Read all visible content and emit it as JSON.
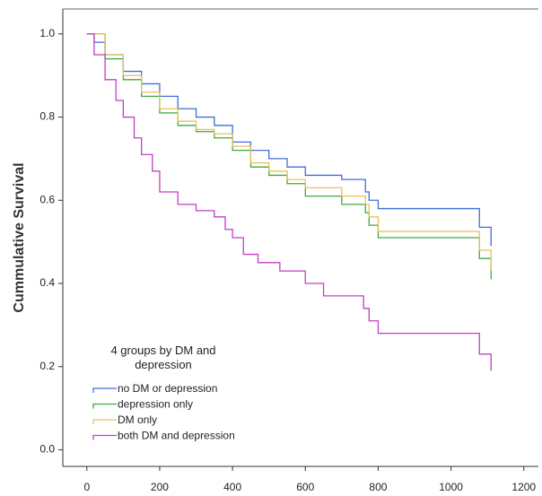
{
  "chart_data": {
    "type": "step",
    "y_label": "Cummulative Survival",
    "legend_title": "4 groups by DM and depression",
    "xlim": [
      -66,
      1240
    ],
    "ylim": [
      -0.04,
      1.06
    ],
    "xticks": [
      0,
      200,
      400,
      600,
      800,
      1000,
      1200
    ],
    "yticks": [
      {
        "value": 0,
        "label": "0.0"
      },
      {
        "value": 0.2,
        "label": "0.2"
      },
      {
        "value": 0.4,
        "label": "0.4"
      },
      {
        "value": 0.6,
        "label": "0.6"
      },
      {
        "value": 0.8,
        "label": "0.8"
      },
      {
        "value": 1,
        "label": "1.0"
      }
    ],
    "series": [
      {
        "name": "no DM or depression",
        "color": "#3f6fd8",
        "x": [
          0,
          20,
          50,
          100,
          150,
          200,
          250,
          300,
          350,
          400,
          450,
          500,
          550,
          600,
          700,
          765,
          775,
          800,
          1078,
          1110
        ],
        "values": [
          1.0,
          0.98,
          0.95,
          0.91,
          0.88,
          0.85,
          0.82,
          0.8,
          0.78,
          0.74,
          0.72,
          0.7,
          0.68,
          0.66,
          0.65,
          0.62,
          0.6,
          0.58,
          0.535,
          0.49
        ]
      },
      {
        "name": "depression only",
        "color": "#3daa3d",
        "x": [
          0,
          50,
          100,
          150,
          200,
          250,
          300,
          350,
          400,
          450,
          500,
          550,
          600,
          700,
          765,
          775,
          800,
          1078,
          1110
        ],
        "values": [
          1.0,
          0.94,
          0.89,
          0.85,
          0.81,
          0.78,
          0.765,
          0.75,
          0.72,
          0.68,
          0.66,
          0.64,
          0.61,
          0.59,
          0.57,
          0.54,
          0.51,
          0.46,
          0.41
        ]
      },
      {
        "name": "DM only",
        "color": "#e8c25a",
        "x": [
          0,
          50,
          100,
          150,
          200,
          250,
          300,
          350,
          400,
          450,
          500,
          550,
          600,
          700,
          765,
          775,
          800,
          1078,
          1110
        ],
        "values": [
          1.0,
          0.95,
          0.9,
          0.86,
          0.82,
          0.79,
          0.77,
          0.76,
          0.73,
          0.69,
          0.67,
          0.65,
          0.63,
          0.61,
          0.59,
          0.56,
          0.525,
          0.48,
          0.43
        ]
      },
      {
        "name": "both DM and depression",
        "color": "#c43fc4",
        "x": [
          0,
          20,
          50,
          80,
          100,
          130,
          150,
          180,
          200,
          250,
          300,
          350,
          380,
          400,
          430,
          470,
          530,
          600,
          650,
          760,
          775,
          800,
          1078,
          1110
        ],
        "values": [
          1.0,
          0.95,
          0.89,
          0.84,
          0.8,
          0.75,
          0.71,
          0.67,
          0.62,
          0.59,
          0.575,
          0.56,
          0.53,
          0.51,
          0.47,
          0.45,
          0.43,
          0.4,
          0.37,
          0.34,
          0.31,
          0.28,
          0.23,
          0.19
        ]
      }
    ]
  }
}
